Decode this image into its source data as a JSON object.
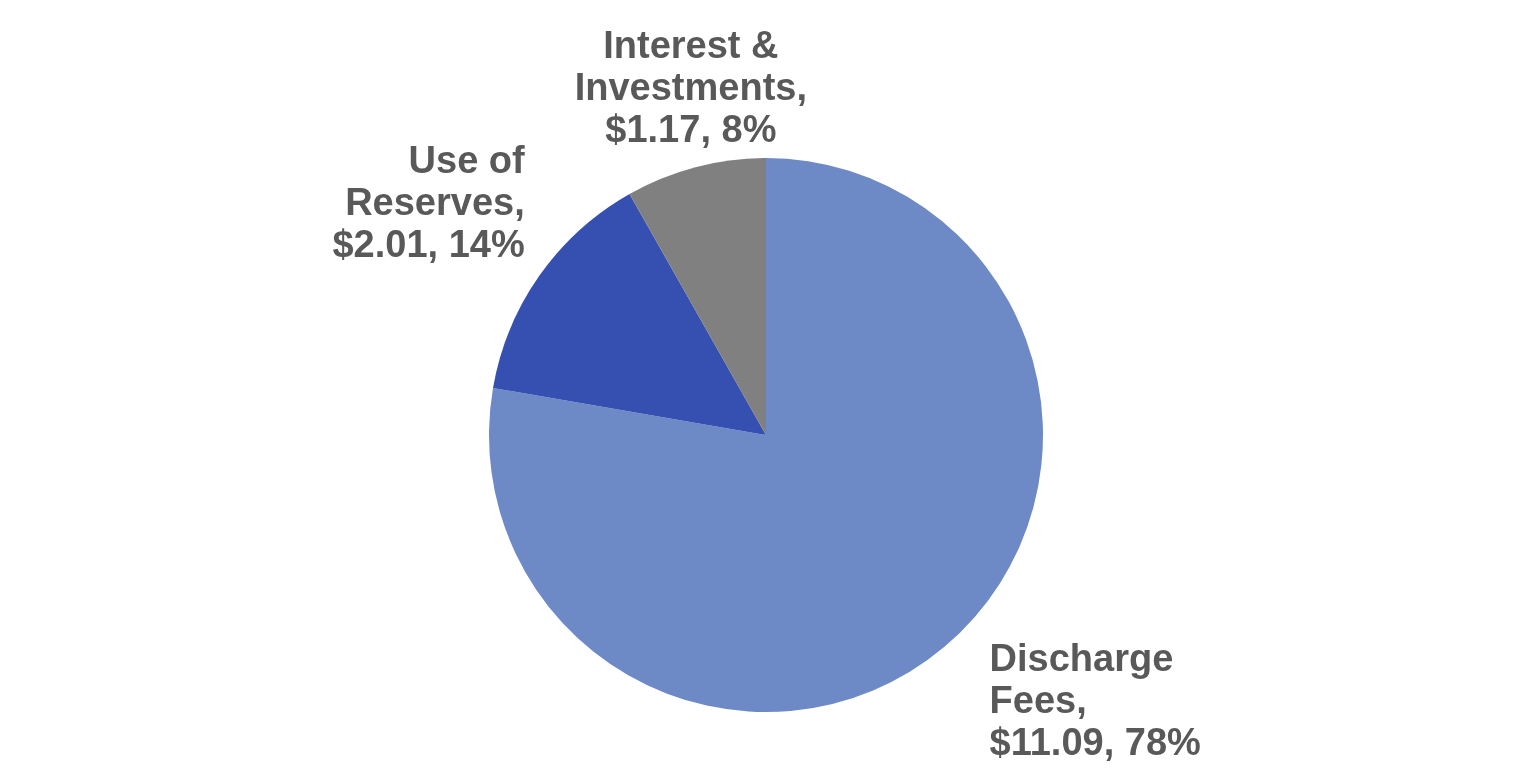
{
  "chart_data": {
    "type": "pie",
    "categories": [
      "Discharge Fees",
      "Use of Reserves",
      "Interest & Investments"
    ],
    "values": [
      11.09,
      2.01,
      1.17
    ],
    "colors": [
      "#6d8ac6",
      "#3550b0",
      "#808080"
    ],
    "value_labels": [
      ", $11.09, 78%",
      ", $2.01, 14%",
      ", $1.17, 8%"
    ],
    "legend": false
  }
}
